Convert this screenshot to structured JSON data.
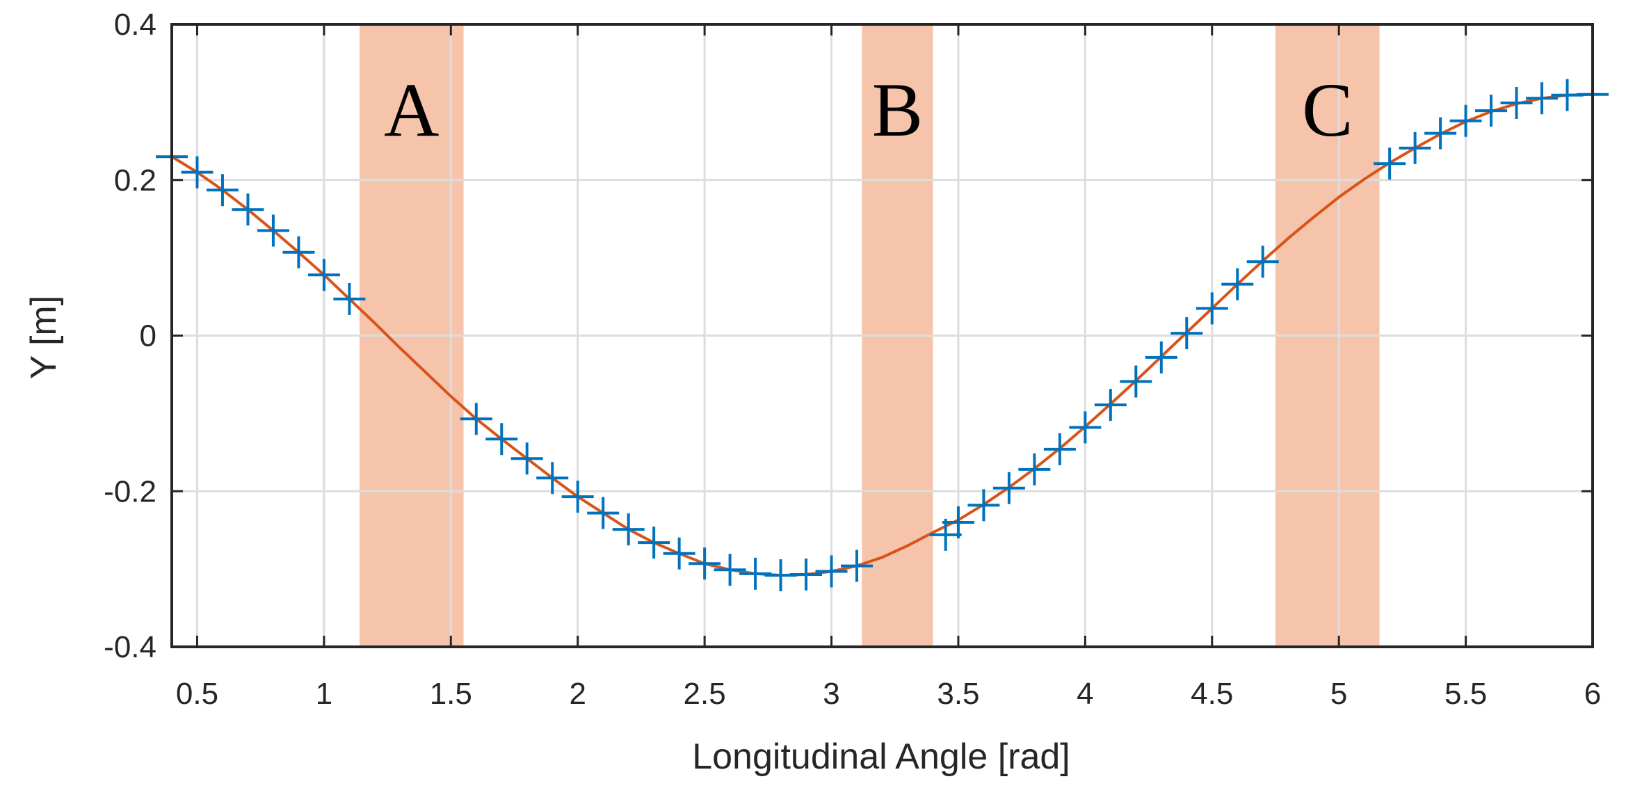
{
  "chart_data": {
    "type": "line",
    "xlabel": "Longitudinal Angle [rad]",
    "ylabel": "Y [m]",
    "xlim": [
      0.4,
      6.0
    ],
    "ylim": [
      -0.4,
      0.4
    ],
    "xticks": [
      0.5,
      1,
      1.5,
      2,
      2.5,
      3,
      3.5,
      4,
      4.5,
      5,
      5.5,
      6
    ],
    "xtick_labels": [
      "0.5",
      "1",
      "1.5",
      "2",
      "2.5",
      "3",
      "3.5",
      "4",
      "4.5",
      "5",
      "5.5",
      "6"
    ],
    "yticks": [
      -0.4,
      -0.2,
      0,
      0.2,
      0.4
    ],
    "ytick_labels": [
      "-0.4",
      "-0.2",
      "0",
      "0.2",
      "0.4"
    ],
    "grid": true,
    "colors": {
      "fit_line": "#D95319",
      "markers": "#0072BD",
      "regions": "#F5C4AA",
      "grid": "#DDDDDD"
    },
    "regions": [
      {
        "label": "A",
        "x": [
          1.14,
          1.55
        ]
      },
      {
        "label": "B",
        "x": [
          3.12,
          3.4
        ]
      },
      {
        "label": "C",
        "x": [
          4.75,
          5.16
        ]
      }
    ],
    "series": [
      {
        "marker": "plus",
        "style": "markers",
        "x": [
          0.4,
          0.5,
          0.6,
          0.7,
          0.8,
          0.9,
          1.0,
          1.1,
          1.6,
          1.7,
          1.8,
          1.9,
          2.0,
          2.1,
          2.2,
          2.3,
          2.4,
          2.5,
          2.6,
          2.7,
          2.8,
          2.9,
          3.0,
          3.1,
          3.45,
          3.5,
          3.6,
          3.7,
          3.8,
          3.9,
          4.0,
          4.1,
          4.2,
          4.3,
          4.4,
          4.5,
          4.6,
          4.7,
          5.2,
          5.3,
          5.4,
          5.5,
          5.6,
          5.7,
          5.8,
          5.9,
          6.0
        ],
        "y": [
          0.23,
          0.21,
          0.187,
          0.162,
          0.135,
          0.107,
          0.078,
          0.047,
          -0.107,
          -0.133,
          -0.158,
          -0.183,
          -0.207,
          -0.228,
          -0.249,
          -0.266,
          -0.28,
          -0.293,
          -0.301,
          -0.306,
          -0.308,
          -0.307,
          -0.303,
          -0.296,
          -0.256,
          -0.24,
          -0.218,
          -0.196,
          -0.172,
          -0.146,
          -0.118,
          -0.089,
          -0.059,
          -0.028,
          0.003,
          0.035,
          0.066,
          0.095,
          0.221,
          0.241,
          0.26,
          0.276,
          0.289,
          0.299,
          0.305,
          0.309,
          0.31
        ]
      },
      {
        "style": "line",
        "x": [
          0.4,
          0.5,
          0.6,
          0.7,
          0.8,
          0.9,
          1.0,
          1.1,
          1.2,
          1.3,
          1.4,
          1.5,
          1.6,
          1.7,
          1.8,
          1.9,
          2.0,
          2.1,
          2.2,
          2.3,
          2.4,
          2.5,
          2.6,
          2.7,
          2.8,
          2.9,
          3.0,
          3.1,
          3.2,
          3.3,
          3.4,
          3.5,
          3.6,
          3.7,
          3.8,
          3.9,
          4.0,
          4.1,
          4.2,
          4.3,
          4.4,
          4.5,
          4.6,
          4.7,
          4.8,
          4.9,
          5.0,
          5.1,
          5.2,
          5.3,
          5.4,
          5.5,
          5.6,
          5.7,
          5.8,
          5.9,
          6.0
        ],
        "y": [
          0.23,
          0.21,
          0.187,
          0.162,
          0.135,
          0.107,
          0.078,
          0.047,
          0.016,
          -0.016,
          -0.047,
          -0.078,
          -0.107,
          -0.133,
          -0.158,
          -0.183,
          -0.207,
          -0.228,
          -0.249,
          -0.266,
          -0.28,
          -0.293,
          -0.301,
          -0.306,
          -0.308,
          -0.307,
          -0.303,
          -0.296,
          -0.285,
          -0.27,
          -0.253,
          -0.237,
          -0.217,
          -0.195,
          -0.171,
          -0.145,
          -0.117,
          -0.088,
          -0.058,
          -0.027,
          0.004,
          0.035,
          0.066,
          0.096,
          0.125,
          0.152,
          0.178,
          0.201,
          0.222,
          0.241,
          0.259,
          0.275,
          0.288,
          0.298,
          0.305,
          0.309,
          0.31
        ]
      }
    ]
  }
}
